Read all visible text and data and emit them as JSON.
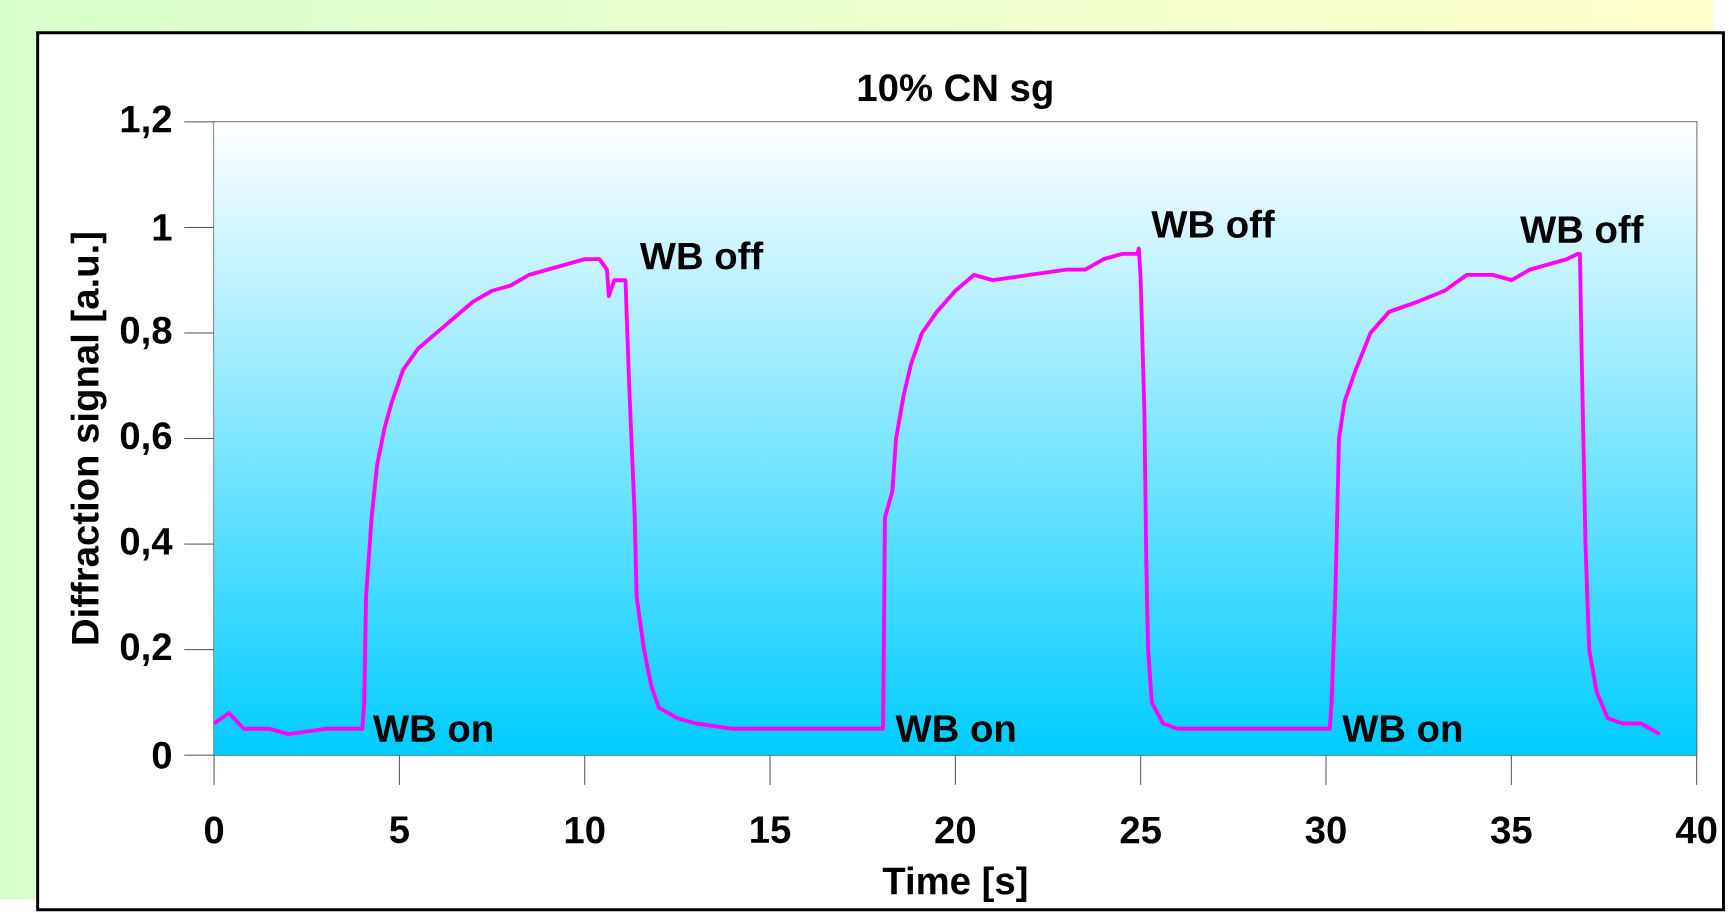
{
  "chart_data": {
    "type": "line",
    "title": "10% CN sg",
    "xlabel": "Time [s]",
    "ylabel": "Diffraction signal [a.u.]",
    "color": "#ff00ff",
    "x": [
      0,
      0.4,
      0.8,
      1.5,
      2,
      3,
      3.9,
      4.0,
      4.05,
      4.1,
      4.25,
      4.4,
      4.6,
      4.8,
      5.1,
      5.5,
      6,
      6.5,
      7,
      7.5,
      8,
      8.5,
      9,
      9.5,
      10,
      10.4,
      10.6,
      10.65,
      10.8,
      11.1,
      11.2,
      11.35,
      11.4,
      11.6,
      11.8,
      12,
      12.5,
      13,
      14,
      15,
      16,
      17,
      18,
      18.05,
      18.1,
      18.3,
      18.4,
      18.6,
      18.8,
      19.1,
      19.5,
      20,
      20.5,
      21,
      22,
      23,
      23.5,
      24,
      24.5,
      24.9,
      24.95,
      25.0,
      25.1,
      25.15,
      25.2,
      25.3,
      25.6,
      26,
      28,
      30,
      30.1,
      30.15,
      30.25,
      30.35,
      30.5,
      30.8,
      31.2,
      31.7,
      32.5,
      33.2,
      33.8,
      34.5,
      35,
      35.5,
      36,
      36.5,
      36.8,
      36.85,
      36.9,
      37,
      37.1,
      37.3,
      37.6,
      38,
      38.5,
      39
    ],
    "values": [
      0.06,
      0.08,
      0.05,
      0.05,
      0.04,
      0.05,
      0.05,
      0.05,
      0.1,
      0.3,
      0.45,
      0.55,
      0.62,
      0.67,
      0.73,
      0.77,
      0.8,
      0.83,
      0.86,
      0.88,
      0.89,
      0.91,
      0.92,
      0.93,
      0.94,
      0.94,
      0.92,
      0.87,
      0.9,
      0.9,
      0.7,
      0.45,
      0.3,
      0.2,
      0.13,
      0.09,
      0.07,
      0.06,
      0.05,
      0.05,
      0.05,
      0.05,
      0.05,
      0.05,
      0.45,
      0.5,
      0.6,
      0.68,
      0.74,
      0.8,
      0.84,
      0.88,
      0.91,
      0.9,
      0.91,
      0.92,
      0.92,
      0.94,
      0.95,
      0.95,
      0.96,
      0.9,
      0.65,
      0.37,
      0.2,
      0.1,
      0.06,
      0.05,
      0.05,
      0.05,
      0.05,
      0.1,
      0.3,
      0.6,
      0.67,
      0.73,
      0.8,
      0.84,
      0.86,
      0.88,
      0.91,
      0.91,
      0.9,
      0.92,
      0.93,
      0.94,
      0.95,
      0.95,
      0.75,
      0.4,
      0.2,
      0.12,
      0.07,
      0.06,
      0.06,
      0.04
    ],
    "xlim": [
      0,
      40
    ],
    "ylim": [
      0,
      1.2
    ],
    "xticks": [
      0,
      5,
      10,
      15,
      20,
      25,
      30,
      35,
      40
    ],
    "yticks": [
      0,
      {
        "value": 0.2,
        "label": "0,2"
      },
      {
        "value": 0.4,
        "label": "0,4"
      },
      {
        "value": 0.6,
        "label": "0,6"
      },
      {
        "value": 0.8,
        "label": "0,8"
      },
      1,
      {
        "value": 1.2,
        "label": "1,2"
      }
    ],
    "annotations": [
      {
        "text": "WB on",
        "x": 4.0,
        "y": 0.05
      },
      {
        "text": "WB off",
        "x": 11.2,
        "y": 0.9
      },
      {
        "text": "WB on",
        "x": 18.1,
        "y": 0.05
      },
      {
        "text": "WB off",
        "x": 25.0,
        "y": 0.96
      },
      {
        "text": "WB on",
        "x": 30.15,
        "y": 0.05
      },
      {
        "text": "WB off",
        "x": 36.9,
        "y": 0.95
      }
    ]
  }
}
